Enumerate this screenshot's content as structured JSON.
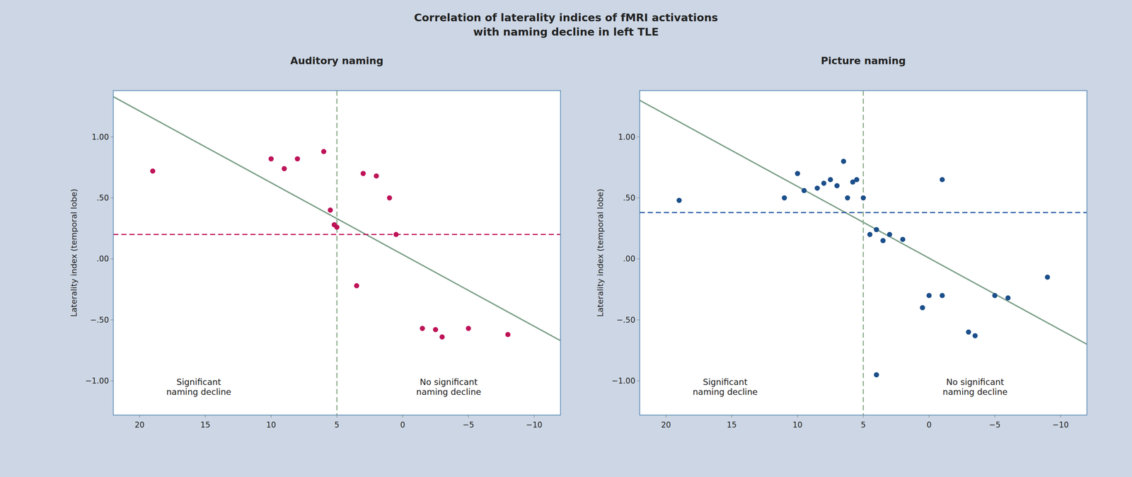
{
  "chart_data": [
    {
      "type": "scatter",
      "title": "Correlation of laterality indices of fMRI activations\nwith naming decline in left TLE",
      "subtitle": "Auditory naming",
      "ylabel": "Laterality index (temporal lobe)",
      "xlim": [
        22,
        -12
      ],
      "ylim": [
        -1.28,
        1.38
      ],
      "xticks": [
        20,
        15,
        10,
        5,
        0,
        {
          "value": -5,
          "label": "−5"
        },
        {
          "value": -10,
          "label": "−10"
        }
      ],
      "yticks": [
        {
          "value": -1.0,
          "label": "−1.00"
        },
        {
          "value": -0.5,
          "label": "−.50"
        },
        {
          "value": 0.0,
          "label": ".00"
        },
        {
          "value": 0.5,
          "label": ".50"
        },
        {
          "value": 1.0,
          "label": "1.00"
        }
      ],
      "grid": false,
      "series": [
        {
          "type": "scatter",
          "marker": "circle",
          "color": "#be1358",
          "x": [
            19,
            10,
            9,
            8,
            6,
            5.5,
            5.2,
            5.0,
            3,
            2,
            1,
            0.5,
            3.5,
            -1.5,
            -2.5,
            -3,
            -5,
            -8
          ],
          "values": [
            0.72,
            0.82,
            0.74,
            0.82,
            0.88,
            0.4,
            0.28,
            0.26,
            0.7,
            0.68,
            0.5,
            0.2,
            -0.22,
            -0.57,
            -0.58,
            -0.64,
            -0.57,
            -0.62
          ]
        },
        {
          "type": "line",
          "line_style": "solid",
          "color": "#7a9e87",
          "x": [
            22,
            -12
          ],
          "values": [
            1.33,
            -0.67
          ]
        }
      ],
      "reference_lines": [
        {
          "axis": "y",
          "value": 0.2,
          "color": "#be1358",
          "line_style": "dashed"
        },
        {
          "axis": "x",
          "value": 5,
          "color": "#8aab8a",
          "line_style": "dashed"
        }
      ],
      "annotations": [
        {
          "text": "Significant\nnaming decline",
          "x": 15.5,
          "y": -1.05
        },
        {
          "text": "No significant\nnaming decline",
          "x": -3.5,
          "y": -1.05
        }
      ]
    },
    {
      "type": "scatter",
      "subtitle": "Picture naming",
      "ylabel": "Laterality index (temporal lobe)",
      "xlim": [
        22,
        -12
      ],
      "ylim": [
        -1.28,
        1.38
      ],
      "xticks": [
        20,
        15,
        10,
        5,
        0,
        {
          "value": -5,
          "label": "−5"
        },
        {
          "value": -10,
          "label": "−10"
        }
      ],
      "yticks": [
        {
          "value": -1.0,
          "label": "−1.00"
        },
        {
          "value": -0.5,
          "label": "−.50"
        },
        {
          "value": 0.0,
          "label": ".00"
        },
        {
          "value": 0.5,
          "label": ".50"
        },
        {
          "value": 1.0,
          "label": "1.00"
        }
      ],
      "grid": false,
      "series": [
        {
          "type": "scatter",
          "marker": "circle",
          "color": "#1c4f8a",
          "x": [
            19,
            11,
            10,
            9.5,
            8.5,
            8,
            7.5,
            7,
            6.5,
            6.2,
            5.8,
            5.5,
            5.0,
            4.5,
            4.0,
            3.5,
            3.0,
            2.0,
            -1,
            0.5,
            0,
            -1,
            -3,
            -3.5,
            -5,
            -6,
            -9,
            4
          ],
          "values": [
            0.48,
            0.5,
            0.7,
            0.56,
            0.58,
            0.62,
            0.65,
            0.6,
            0.8,
            0.5,
            0.63,
            0.65,
            0.5,
            0.2,
            0.24,
            0.15,
            0.2,
            0.16,
            0.65,
            -0.4,
            -0.3,
            -0.3,
            -0.6,
            -0.63,
            -0.3,
            -0.32,
            -0.15,
            -0.95
          ]
        },
        {
          "type": "line",
          "line_style": "solid",
          "color": "#7a9e87",
          "x": [
            22,
            -12
          ],
          "values": [
            1.3,
            -0.7
          ]
        }
      ],
      "reference_lines": [
        {
          "axis": "y",
          "value": 0.38,
          "color": "#2255a0",
          "line_style": "dashed"
        },
        {
          "axis": "x",
          "value": 5,
          "color": "#8aab8a",
          "line_style": "dashed"
        }
      ],
      "annotations": [
        {
          "text": "Significant\nnaming decline",
          "x": 15.5,
          "y": -1.05
        },
        {
          "text": "No significant\nnaming decline",
          "x": -3.5,
          "y": -1.05
        }
      ]
    }
  ]
}
